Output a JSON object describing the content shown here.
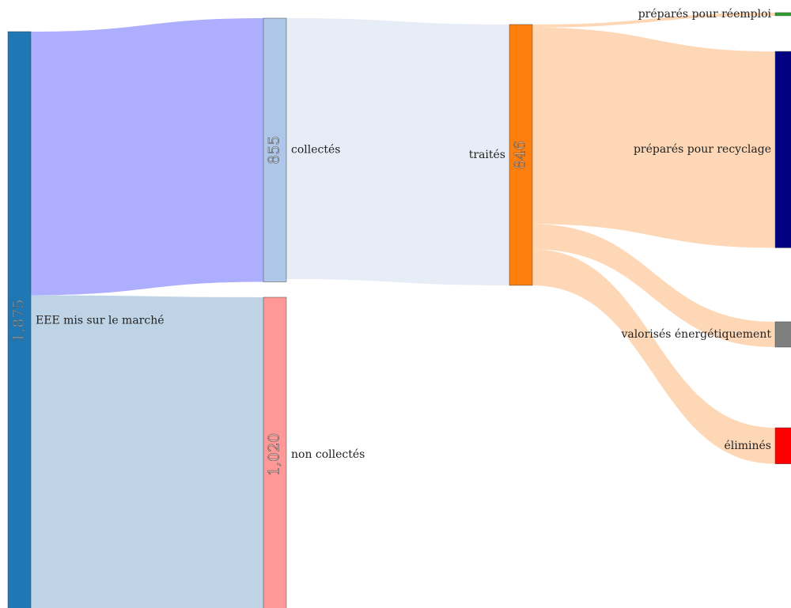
{
  "chart_data": {
    "type": "sankey",
    "nodes": [
      {
        "name": "EEE mis sur le marché",
        "value": 1875,
        "value_label": "1,875",
        "color": "#1f77b4"
      },
      {
        "name": "collectés",
        "value": 855,
        "value_label": "855",
        "color": "#aec7e8"
      },
      {
        "name": "non collectés",
        "value": 1020,
        "value_label": "1,020",
        "color": "#ff9896"
      },
      {
        "name": "traités",
        "value": 846,
        "value_label": "846",
        "color": "#ff7f0e"
      },
      {
        "name": "préparés pour réemploi",
        "value": 10,
        "color": "#2ca02c"
      },
      {
        "name": "préparés pour recyclage",
        "value": 637,
        "color": "#000080"
      },
      {
        "name": "valorisés énergétiquement",
        "value": 82,
        "color": "#7f7f7f"
      },
      {
        "name": "éliminés",
        "value": 117,
        "color": "#ff0000"
      }
    ],
    "links": [
      {
        "source": 0,
        "target": 1,
        "value": 855,
        "color": "#aaaaff"
      },
      {
        "source": 0,
        "target": 2,
        "value": 1020,
        "color": "#bbd1e4"
      },
      {
        "source": 1,
        "target": 3,
        "value": 846,
        "color": "#e6ecf5"
      },
      {
        "source": 3,
        "target": 4,
        "value": 10,
        "color": "#fdd5b2"
      },
      {
        "source": 3,
        "target": 5,
        "value": 637,
        "color": "#fdd5b2"
      },
      {
        "source": 3,
        "target": 6,
        "value": 82,
        "color": "#fdd5b2"
      },
      {
        "source": 3,
        "target": 7,
        "value": 117,
        "color": "#fdd5b2"
      }
    ]
  }
}
